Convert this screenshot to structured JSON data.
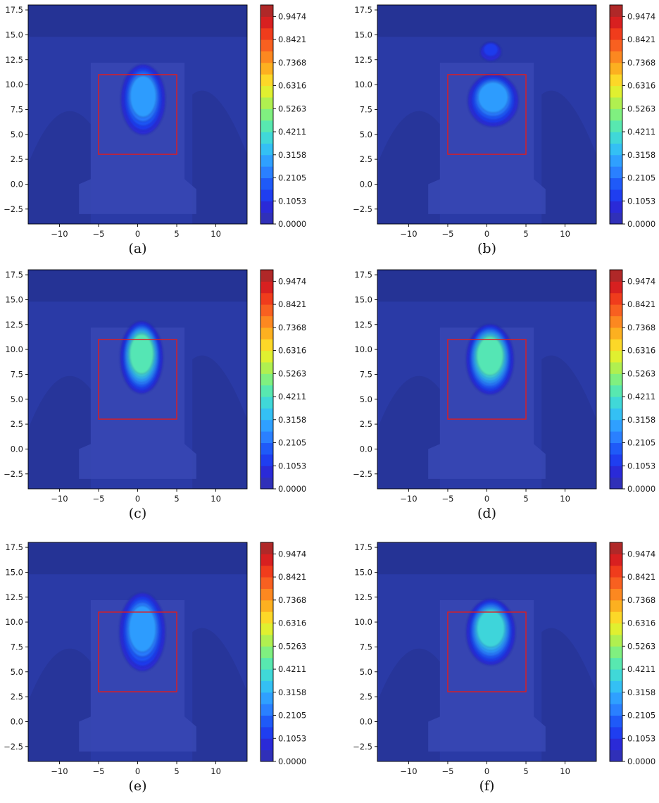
{
  "colors": {
    "background": "#2a3aa6",
    "darker_band": "#24318f",
    "silhouette": "#3848b4",
    "box": "#e21c1c",
    "colorbar": [
      "#3030b8",
      "#2a2ad8",
      "#1f3ef0",
      "#1f5af8",
      "#2a80ff",
      "#2fa0ff",
      "#34c0f4",
      "#40d8d8",
      "#58e8b0",
      "#80f080",
      "#b0f050",
      "#e0f030",
      "#fcd828",
      "#fcb020",
      "#fc8820",
      "#f86020",
      "#f03c1c",
      "#d82020",
      "#b02828"
    ]
  },
  "chart_data": [
    {
      "type": "heatmap",
      "caption": "(a)",
      "xlim": [
        -14,
        14
      ],
      "ylim": [
        -4,
        18
      ],
      "xticks": [
        "−10",
        "−5",
        "0",
        "5",
        "10"
      ],
      "xtick_values": [
        -10,
        -5,
        0,
        5,
        10
      ],
      "yticks": [
        "−2.5",
        "0.0",
        "2.5",
        "5.0",
        "7.5",
        "10.0",
        "12.5",
        "15.0",
        "17.5"
      ],
      "ytick_values": [
        -2.5,
        0,
        2.5,
        5,
        7.5,
        10,
        12.5,
        15,
        17.5
      ],
      "colorbar_ticks": [
        "0.0000",
        "0.1053",
        "0.2105",
        "0.3158",
        "0.4211",
        "0.5263",
        "0.6316",
        "0.7368",
        "0.8421",
        "0.9474"
      ],
      "colorbar_range": [
        0,
        1
      ],
      "box": {
        "x0": -5,
        "x1": 5,
        "y0": 3,
        "y1": 11
      },
      "blobs": [
        {
          "cx": 0.7,
          "cy": 8.5,
          "rx": 2.8,
          "ry": 3.5,
          "peak": 0.26
        }
      ]
    },
    {
      "type": "heatmap",
      "caption": "(b)",
      "xlim": [
        -14,
        14
      ],
      "ylim": [
        -4,
        18
      ],
      "xticks": [
        "−10",
        "−5",
        "0",
        "5",
        "10"
      ],
      "xtick_values": [
        -10,
        -5,
        0,
        5,
        10
      ],
      "yticks": [
        "−2.5",
        "0.0",
        "2.5",
        "5.0",
        "7.5",
        "10.0",
        "12.5",
        "15.0",
        "17.5"
      ],
      "ytick_values": [
        -2.5,
        0,
        2.5,
        5,
        7.5,
        10,
        12.5,
        15,
        17.5
      ],
      "colorbar_ticks": [
        "0.0000",
        "0.1053",
        "0.2105",
        "0.3158",
        "0.4211",
        "0.5263",
        "0.6316",
        "0.7368",
        "0.8421",
        "0.9474"
      ],
      "colorbar_range": [
        0,
        1
      ],
      "box": {
        "x0": -5,
        "x1": 5,
        "y0": 3,
        "y1": 11
      },
      "blobs": [
        {
          "cx": 0.8,
          "cy": 8.4,
          "rx": 3.2,
          "ry": 2.6,
          "peak": 0.26
        },
        {
          "cx": 0.5,
          "cy": 13.3,
          "rx": 1.3,
          "ry": 0.9,
          "peak": 0.1
        }
      ]
    },
    {
      "type": "heatmap",
      "caption": "(c)",
      "xlim": [
        -14,
        14
      ],
      "ylim": [
        -4,
        18
      ],
      "xticks": [
        "−10",
        "−5",
        "0",
        "5",
        "10"
      ],
      "xtick_values": [
        -10,
        -5,
        0,
        5,
        10
      ],
      "yticks": [
        "−2.5",
        "0.0",
        "2.5",
        "5.0",
        "7.5",
        "10.0",
        "12.5",
        "15.0",
        "17.5"
      ],
      "ytick_values": [
        -2.5,
        0,
        2.5,
        5,
        7.5,
        10,
        12.5,
        15,
        17.5
      ],
      "colorbar_ticks": [
        "0.0000",
        "0.1053",
        "0.2105",
        "0.3158",
        "0.4211",
        "0.5263",
        "0.6316",
        "0.7368",
        "0.8421",
        "0.9474"
      ],
      "colorbar_range": [
        0,
        1
      ],
      "box": {
        "x0": -5,
        "x1": 5,
        "y0": 3,
        "y1": 11
      },
      "blobs": [
        {
          "cx": 0.5,
          "cy": 9.2,
          "rx": 2.7,
          "ry": 3.6,
          "peak": 0.4
        }
      ]
    },
    {
      "type": "heatmap",
      "caption": "(d)",
      "xlim": [
        -14,
        14
      ],
      "ylim": [
        -4,
        18
      ],
      "xticks": [
        "−10",
        "−5",
        "0",
        "5",
        "10"
      ],
      "xtick_values": [
        -10,
        -5,
        0,
        5,
        10
      ],
      "yticks": [
        "−2.5",
        "0.0",
        "2.5",
        "5.0",
        "7.5",
        "10.0",
        "12.5",
        "15.0",
        "17.5"
      ],
      "ytick_values": [
        -2.5,
        0,
        2.5,
        5,
        7.5,
        10,
        12.5,
        15,
        17.5
      ],
      "colorbar_ticks": [
        "0.0000",
        "0.1053",
        "0.2105",
        "0.3158",
        "0.4211",
        "0.5263",
        "0.6316",
        "0.7368",
        "0.8421",
        "0.9474"
      ],
      "colorbar_range": [
        0,
        1
      ],
      "box": {
        "x0": -5,
        "x1": 5,
        "y0": 3,
        "y1": 11
      },
      "blobs": [
        {
          "cx": 0.4,
          "cy": 9.0,
          "rx": 3.0,
          "ry": 3.5,
          "peak": 0.4
        }
      ]
    },
    {
      "type": "heatmap",
      "caption": "(e)",
      "xlim": [
        -14,
        14
      ],
      "ylim": [
        -4,
        18
      ],
      "xticks": [
        "−10",
        "−5",
        "0",
        "5",
        "10"
      ],
      "xtick_values": [
        -10,
        -5,
        0,
        5,
        10
      ],
      "yticks": [
        "−2.5",
        "0.0",
        "2.5",
        "5.0",
        "7.5",
        "10.0",
        "12.5",
        "15.0",
        "17.5"
      ],
      "ytick_values": [
        -2.5,
        0,
        2.5,
        5,
        7.5,
        10,
        12.5,
        15,
        17.5
      ],
      "colorbar_ticks": [
        "0.0000",
        "0.1053",
        "0.2105",
        "0.3158",
        "0.4211",
        "0.5263",
        "0.6316",
        "0.7368",
        "0.8421",
        "0.9474"
      ],
      "colorbar_range": [
        0,
        1
      ],
      "box": {
        "x0": -5,
        "x1": 5,
        "y0": 3,
        "y1": 11
      },
      "blobs": [
        {
          "cx": 0.6,
          "cy": 9.0,
          "rx": 2.9,
          "ry": 3.9,
          "peak": 0.26
        }
      ]
    },
    {
      "type": "heatmap",
      "caption": "(f)",
      "xlim": [
        -14,
        14
      ],
      "ylim": [
        -4,
        18
      ],
      "xticks": [
        "−10",
        "−5",
        "0",
        "5",
        "10"
      ],
      "xtick_values": [
        -10,
        -5,
        0,
        5,
        10
      ],
      "yticks": [
        "−2.5",
        "0.0",
        "2.5",
        "5.0",
        "7.5",
        "10.0",
        "12.5",
        "15.0",
        "17.5"
      ],
      "ytick_values": [
        -2.5,
        0,
        2.5,
        5,
        7.5,
        10,
        12.5,
        15,
        17.5
      ],
      "colorbar_ticks": [
        "0.0000",
        "0.1053",
        "0.2105",
        "0.3158",
        "0.4211",
        "0.5263",
        "0.6316",
        "0.7368",
        "0.8421",
        "0.9474"
      ],
      "colorbar_range": [
        0,
        1
      ],
      "box": {
        "x0": -5,
        "x1": 5,
        "y0": 3,
        "y1": 11
      },
      "blobs": [
        {
          "cx": 0.5,
          "cy": 9.0,
          "rx": 3.1,
          "ry": 3.3,
          "peak": 0.35
        }
      ]
    }
  ]
}
